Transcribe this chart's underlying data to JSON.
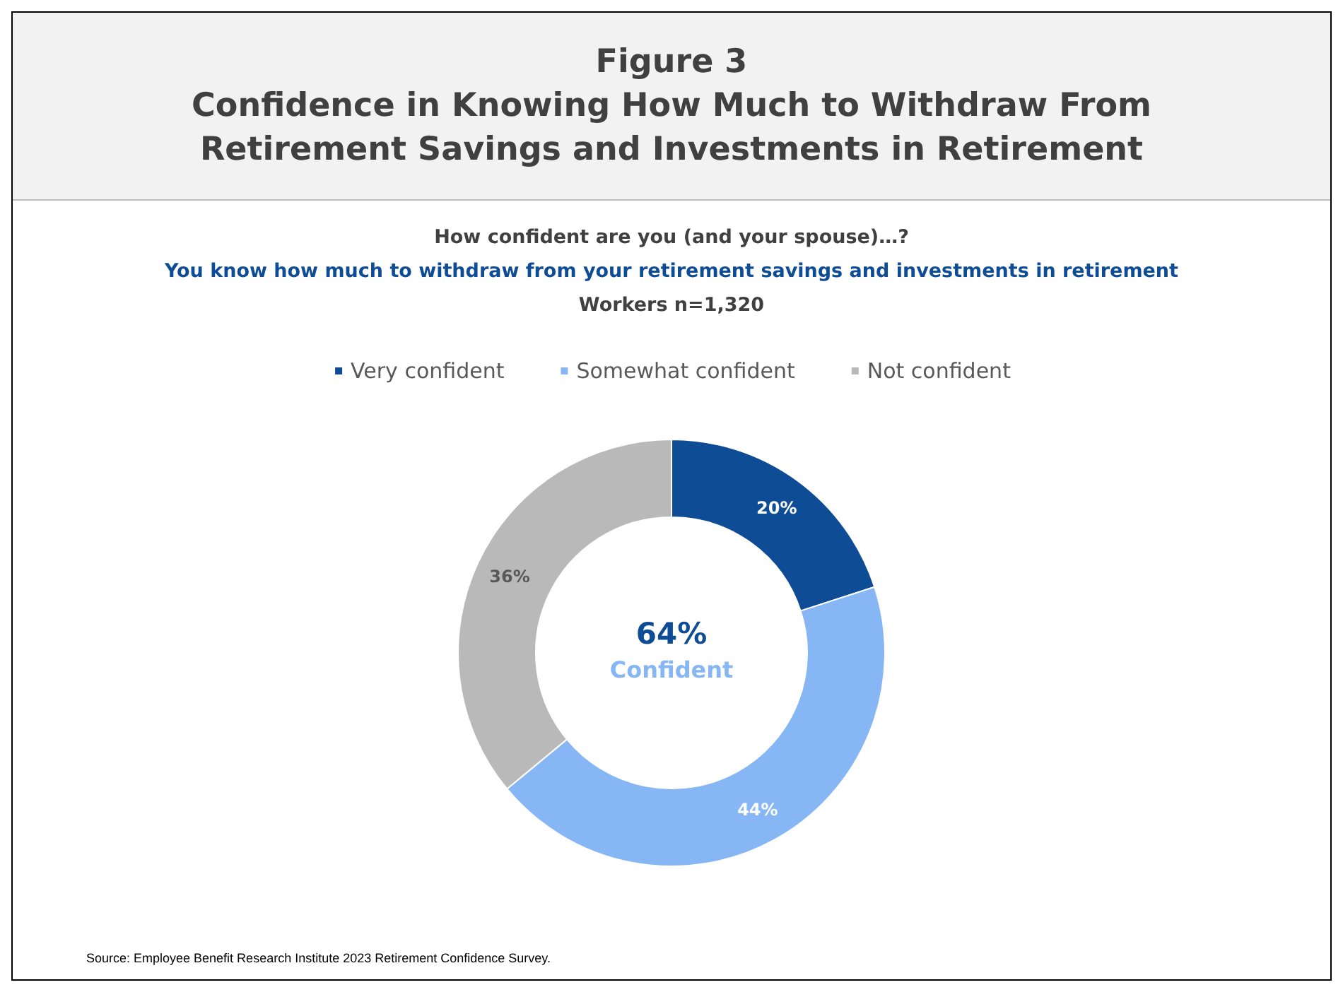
{
  "chart_data": {
    "type": "donut",
    "title": "Figure 3\nConfidence in Knowing How Much to Withdraw From Retirement Savings and Investments in Retirement",
    "subtitle": "How confident are you (and your spouse)…?\nYou know how much to withdraw from your retirement savings and investments in retirement\nWorkers n=1,320",
    "categories": [
      "Very confident",
      "Somewhat confident",
      "Not confident"
    ],
    "values": [
      20,
      44,
      36
    ],
    "colors": [
      "#0f4c96",
      "#86b6f4",
      "#b9b9b9"
    ],
    "value_labels": [
      "20%",
      "44%",
      "36%"
    ],
    "legend": "top",
    "annotations": [
      "64%",
      "Confident",
      "Source: Employee Benefit Research Institute 2023 Retirement Confidence Survey."
    ]
  }
}
